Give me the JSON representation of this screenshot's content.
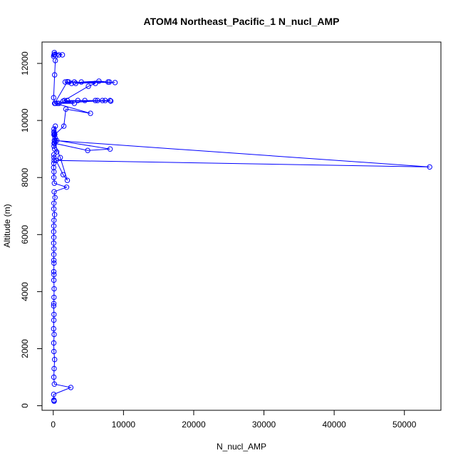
{
  "chart_data": {
    "type": "line",
    "title": "ATOM4 Northeast_Pacific_1 N_nucl_AMP",
    "xlabel": "N_nucl_AMP",
    "ylabel": "Altitude (m)",
    "xlim": [
      -1600,
      55200
    ],
    "ylim": [
      -160,
      12750
    ],
    "xticks": [
      0,
      10000,
      20000,
      30000,
      40000,
      50000
    ],
    "yticks": [
      0,
      2000,
      4000,
      6000,
      8000,
      10000,
      12000
    ],
    "grid": false,
    "series": [
      {
        "color": "#0000ff",
        "marker": "open-circle",
        "x": [
          100,
          120,
          90,
          60,
          2500,
          150,
          80,
          120,
          200,
          90,
          70,
          120,
          50,
          80,
          100,
          60,
          80,
          100,
          120,
          80,
          100,
          70,
          100,
          80,
          80,
          90,
          60,
          80,
          60,
          80,
          100,
          200,
          80,
          90,
          250,
          120,
          1900,
          150,
          80,
          100,
          50,
          80,
          120,
          100,
          80,
          500,
          200,
          100,
          120,
          300,
          250,
          100,
          120,
          200,
          100,
          100,
          300,
          150,
          53600,
          400,
          1400,
          2000,
          1000,
          200,
          4900,
          8100,
          500,
          200,
          1500,
          1800,
          5300,
          300,
          3500,
          6000,
          8100,
          2000,
          7400,
          600,
          800,
          3000,
          1600,
          4500,
          6300,
          7000,
          8200,
          1400,
          5000,
          6000,
          2200,
          3000,
          3200,
          8000,
          4000,
          6500,
          7800,
          8800,
          1700,
          2600,
          2000,
          200,
          50,
          200,
          300,
          800,
          1300,
          150,
          250,
          100,
          50,
          200
        ],
        "y": [
          170,
          160,
          200,
          400,
          640,
          760,
          1000,
          1300,
          1620,
          1900,
          2200,
          2500,
          2700,
          3000,
          3200,
          3500,
          3580,
          3800,
          4100,
          4400,
          4600,
          4700,
          5000,
          5100,
          5300,
          5500,
          5700,
          5900,
          6100,
          6300,
          6500,
          6700,
          6900,
          7100,
          7300,
          7500,
          7660,
          7800,
          8000,
          8200,
          8350,
          8500,
          8600,
          8700,
          8800,
          8900,
          9000,
          9100,
          9200,
          9300,
          9400,
          9500,
          9560,
          9520,
          9600,
          9700,
          9800,
          9300,
          8370,
          8600,
          8100,
          7900,
          8700,
          9200,
          8950,
          9000,
          9300,
          9500,
          9800,
          10400,
          10250,
          10600,
          10700,
          10700,
          10700,
          10700,
          10700,
          10600,
          10600,
          10600,
          10700,
          10700,
          10700,
          10700,
          10680,
          10680,
          11200,
          11300,
          11350,
          11350,
          11300,
          11350,
          11350,
          11380,
          11350,
          11330,
          11350,
          11300,
          11360,
          10600,
          10800,
          11600,
          12100,
          12300,
          12300,
          12380,
          12320,
          12300,
          12250,
          12310
        ]
      }
    ]
  }
}
